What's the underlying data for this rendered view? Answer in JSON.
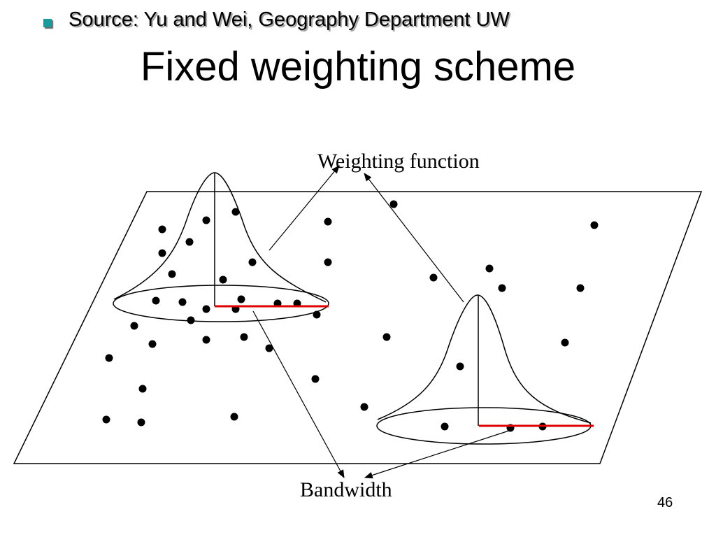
{
  "slide": {
    "source": "Source: Yu and Wei, Geography Department UW",
    "title": "Fixed weighting scheme",
    "page_number": "46"
  },
  "diagram": {
    "labels": {
      "weighting_function": "Weighting function",
      "bandwidth": "Bandwidth"
    },
    "colors": {
      "bullet": "#1a9a9a",
      "bandwidth_line": "#e00000",
      "ink": "#000000"
    }
  }
}
